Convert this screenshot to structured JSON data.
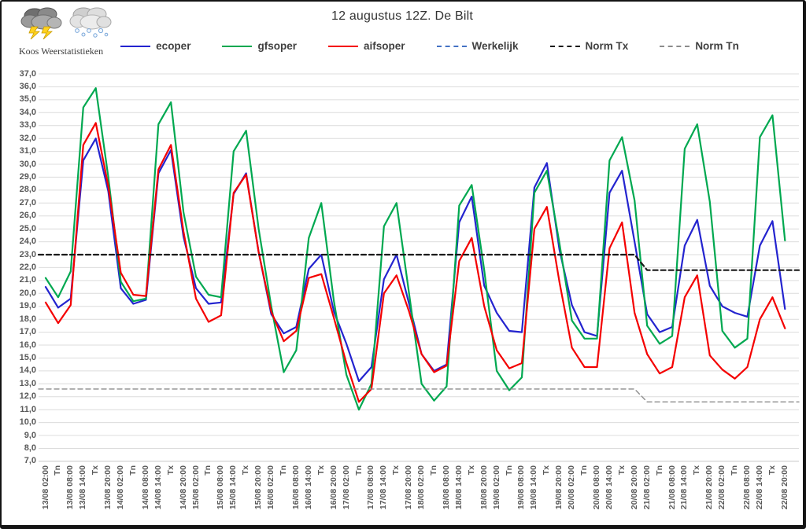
{
  "window": {
    "border_color": "#141414",
    "background": "#ffffff"
  },
  "logo": {
    "caption": "Koos Weerstatistieken",
    "icons": [
      "storm-cloud-icon",
      "snow-cloud-icon"
    ]
  },
  "header": {
    "title": "12 augustus 12Z. De Bilt"
  },
  "legend": [
    {
      "label": "ecoper",
      "color": "#2424CF",
      "style": "solid"
    },
    {
      "label": "gfsoper",
      "color": "#00A850",
      "style": "solid"
    },
    {
      "label": "aifsoper",
      "color": "#F40000",
      "style": "solid"
    },
    {
      "label": "Werkelijk",
      "color": "#4472C4",
      "style": "dashed"
    },
    {
      "label": "Norm Tx",
      "color": "#1A1A1A",
      "style": "dashed"
    },
    {
      "label": "Norm Tn",
      "color": "#8C8C8C",
      "style": "dashed"
    }
  ],
  "chart_data": {
    "type": "line",
    "title": "12 augustus 12Z. De Bilt",
    "xlabel": "",
    "ylabel": "",
    "ylim": [
      7,
      37
    ],
    "ytick_step": 1,
    "ylabel_format": "comma-decimal-one-place",
    "grid": "horizontal",
    "legend_position": "top",
    "colors": {
      "grid": "#DCDCDC",
      "axis_labels": "#595959"
    },
    "categories": [
      "13/08 02:00",
      "Tn",
      "13/08 08:00",
      "13/08 14:00",
      "Tx",
      "13/08 20:00",
      "14/08 02:00",
      "Tn",
      "14/08 08:00",
      "14/08 14:00",
      "Tx",
      "14/08 20:00",
      "15/08 02:00",
      "Tn",
      "15/08 08:00",
      "15/08 14:00",
      "Tx",
      "15/08 20:00",
      "16/08 02:00",
      "Tn",
      "16/08 08:00",
      "16/08 14:00",
      "Tx",
      "16/08 20:00",
      "17/08 02:00",
      "Tn",
      "17/08 08:00",
      "17/08 14:00",
      "Tx",
      "17/08 20:00",
      "18/08 02:00",
      "Tn",
      "18/08 08:00",
      "18/08 14:00",
      "Tx",
      "18/08 20:00",
      "19/08 02:00",
      "Tn",
      "19/08 08:00",
      "19/08 14:00",
      "Tx",
      "19/08 20:00",
      "20/08 02:00",
      "Tn",
      "20/08 08:00",
      "20/08 14:00",
      "Tx",
      "20/08 20:00",
      "21/08 02:00",
      "Tn",
      "21/08 08:00",
      "21/08 14:00",
      "Tx",
      "21/08 20:00",
      "22/08 02:00",
      "Tn",
      "22/08 08:00",
      "22/08 14:00",
      "Tx",
      "22/08 20:00"
    ],
    "series": [
      {
        "name": "ecoper",
        "color": "#2424CF",
        "style": "solid",
        "width": 2.2,
        "values": [
          20.5,
          18.9,
          19.6,
          30.3,
          32.0,
          27.9,
          20.4,
          19.2,
          19.5,
          29.3,
          31.1,
          24.4,
          20.4,
          19.2,
          19.3,
          27.7,
          29.3,
          23.2,
          18.4,
          16.9,
          17.4,
          21.9,
          23.0,
          18.6,
          16.1,
          13.2,
          14.3,
          21.1,
          23.0,
          19.2,
          15.3,
          14.0,
          14.5,
          25.5,
          27.5,
          20.6,
          18.5,
          17.1,
          17.0,
          28.2,
          30.1,
          23.4,
          19.1,
          17.0,
          16.7,
          27.8,
          29.5,
          24.0,
          18.4,
          17.0,
          17.4,
          23.7,
          25.7,
          20.6,
          19.0,
          18.5,
          18.2,
          23.7,
          25.6,
          18.8
        ]
      },
      {
        "name": "gfsoper",
        "color": "#00A850",
        "style": "solid",
        "width": 2.2,
        "values": [
          21.2,
          19.7,
          21.7,
          34.4,
          35.9,
          29.0,
          20.9,
          19.4,
          19.6,
          33.1,
          34.8,
          26.3,
          21.3,
          19.9,
          19.7,
          31.0,
          32.6,
          25.0,
          19.0,
          13.9,
          15.6,
          24.3,
          27.0,
          19.4,
          13.7,
          11.0,
          13.0,
          25.2,
          27.0,
          20.0,
          13.0,
          11.7,
          12.8,
          26.8,
          28.4,
          21.8,
          14.0,
          12.5,
          13.5,
          27.8,
          29.5,
          23.9,
          17.9,
          16.5,
          16.5,
          30.3,
          32.1,
          27.2,
          17.5,
          16.1,
          16.7,
          31.2,
          33.1,
          27.1,
          17.1,
          15.8,
          16.5,
          32.1,
          33.8,
          24.1
        ]
      },
      {
        "name": "aifsoper",
        "color": "#F40000",
        "style": "solid",
        "width": 2.2,
        "values": [
          19.3,
          17.7,
          19.1,
          31.5,
          33.2,
          28.3,
          21.6,
          19.9,
          19.8,
          29.6,
          31.5,
          24.8,
          19.6,
          17.8,
          18.3,
          27.8,
          29.2,
          23.2,
          18.6,
          16.3,
          17.1,
          21.2,
          21.5,
          18.1,
          14.6,
          11.6,
          12.6,
          20.0,
          21.4,
          18.6,
          15.3,
          13.9,
          14.4,
          22.5,
          24.3,
          19.0,
          15.6,
          14.2,
          14.6,
          25.0,
          26.7,
          20.9,
          15.8,
          14.3,
          14.3,
          23.5,
          25.5,
          18.5,
          15.3,
          13.8,
          14.3,
          19.7,
          21.4,
          15.2,
          14.1,
          13.4,
          14.3,
          18.0,
          19.7,
          17.3
        ]
      },
      {
        "name": "Werkelijk",
        "color": "#4472C4",
        "style": "dashed",
        "width": 1.6,
        "values": []
      },
      {
        "name": "Norm Tx",
        "color": "#1A1A1A",
        "style": "dashed",
        "width": 2.2,
        "values": [
          23.0,
          23.0,
          23.0,
          23.0,
          23.0,
          23.0,
          23.0,
          23.0,
          23.0,
          23.0,
          23.0,
          23.0,
          23.0,
          23.0,
          23.0,
          23.0,
          23.0,
          23.0,
          23.0,
          23.0,
          23.0,
          23.0,
          23.0,
          23.0,
          23.0,
          23.0,
          23.0,
          23.0,
          23.0,
          23.0,
          23.0,
          23.0,
          23.0,
          23.0,
          23.0,
          23.0,
          23.0,
          23.0,
          23.0,
          23.0,
          23.0,
          23.0,
          23.0,
          23.0,
          23.0,
          23.0,
          23.0,
          23.0,
          21.8,
          21.8,
          21.8,
          21.8,
          21.8,
          21.8,
          21.8,
          21.8,
          21.8,
          21.8,
          21.8,
          21.8
        ]
      },
      {
        "name": "Norm Tn",
        "color": "#8C8C8C",
        "style": "dashed",
        "width": 1.4,
        "values": [
          12.6,
          12.6,
          12.6,
          12.6,
          12.6,
          12.6,
          12.6,
          12.6,
          12.6,
          12.6,
          12.6,
          12.6,
          12.6,
          12.6,
          12.6,
          12.6,
          12.6,
          12.6,
          12.6,
          12.6,
          12.6,
          12.6,
          12.6,
          12.6,
          12.6,
          12.6,
          12.6,
          12.6,
          12.6,
          12.6,
          12.6,
          12.6,
          12.6,
          12.6,
          12.6,
          12.6,
          12.6,
          12.6,
          12.6,
          12.6,
          12.6,
          12.6,
          12.6,
          12.6,
          12.6,
          12.6,
          12.6,
          12.6,
          11.6,
          11.6,
          11.6,
          11.6,
          11.6,
          11.6,
          11.6,
          11.6,
          11.6,
          11.6,
          11.6,
          11.6
        ]
      }
    ]
  }
}
